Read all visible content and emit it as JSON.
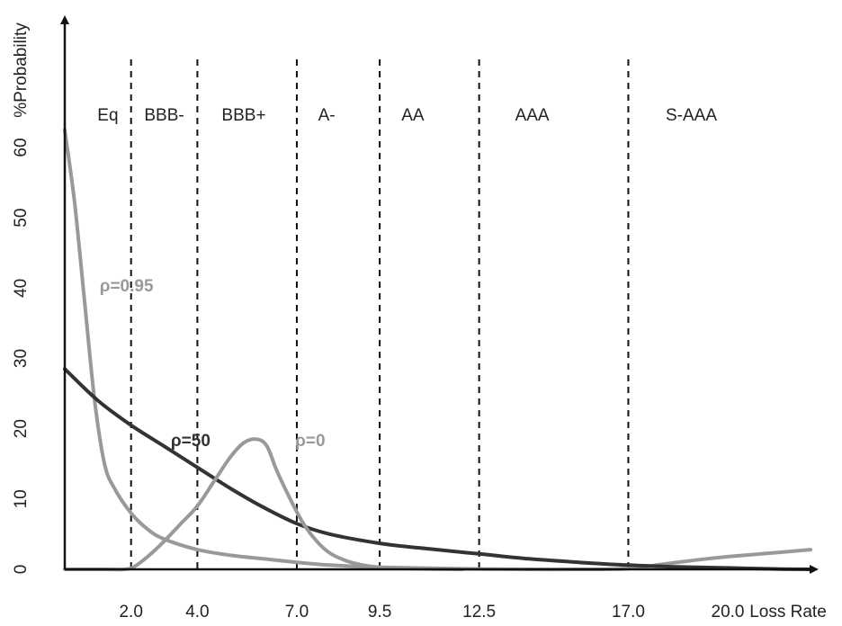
{
  "chart_data": {
    "type": "line",
    "title": "",
    "xlabel": "Loss Rate",
    "ylabel": "%Probability",
    "xlim": [
      0,
      23.5
    ],
    "ylim": [
      0,
      60
    ],
    "grid": false,
    "x_ticks": [
      "2.0",
      "4.0",
      "7.0",
      "9.5",
      "12.5",
      "17.0",
      "20.0"
    ],
    "x_tick_values": [
      2.0,
      4.0,
      7.0,
      9.5,
      12.5,
      17.0,
      20.0
    ],
    "y_ticks": [
      "0",
      "10",
      "20",
      "30",
      "40",
      "50",
      "60"
    ],
    "y_tick_values": [
      0,
      10,
      20,
      30,
      40,
      50,
      60
    ],
    "tranche_boundaries": [
      2.0,
      4.0,
      7.0,
      9.5,
      12.5,
      17.0
    ],
    "tranches": [
      {
        "label": "Eq",
        "x": 1.3
      },
      {
        "label": "BBB-",
        "x": 3.0
      },
      {
        "label": "BBB+",
        "x": 5.4
      },
      {
        "label": "A-",
        "x": 7.9
      },
      {
        "label": "AA",
        "x": 10.5
      },
      {
        "label": "AAA",
        "x": 14.1
      },
      {
        "label": "S-AAA",
        "x": 18.9
      }
    ],
    "series": [
      {
        "name": "ρ=0.95",
        "color": "#999999",
        "label_at": [
          1.05,
          39.5
        ],
        "x": [
          0,
          0.3,
          0.6,
          0.9,
          1.2,
          1.5,
          2.0,
          2.5,
          3.0,
          4.0,
          5.0,
          6.0,
          7.0,
          8.0,
          9.5,
          11.0,
          12.5,
          14.0,
          15.5,
          17.0,
          18.0,
          19.0,
          20.0,
          21.0,
          22.0,
          22.5
        ],
        "values": [
          62.5,
          52,
          38,
          24,
          15,
          11.5,
          8,
          5.7,
          4.3,
          2.8,
          2.0,
          1.5,
          1.0,
          0.6,
          0.3,
          0.15,
          0.05,
          0,
          0,
          0.1,
          0.7,
          1.3,
          1.8,
          2.2,
          2.6,
          2.8
        ]
      },
      {
        "name": "ρ=50",
        "color": "#333333",
        "label_at": [
          3.2,
          17.5
        ],
        "x": [
          0,
          1.0,
          2.0,
          3.0,
          4.0,
          5.0,
          6.0,
          7.0,
          8.0,
          9.5,
          11.0,
          12.5,
          14.0,
          15.5,
          17.0,
          18.5,
          20.0,
          21.5,
          22.5
        ],
        "values": [
          28.5,
          24,
          20.5,
          17.5,
          14.5,
          11.5,
          8.8,
          6.5,
          5.0,
          3.7,
          2.9,
          2.2,
          1.5,
          1.0,
          0.6,
          0.35,
          0.2,
          0.05,
          0
        ]
      },
      {
        "name": "ρ=0",
        "color": "#999999",
        "label_at": [
          6.95,
          17.5
        ],
        "x": [
          0,
          1.2,
          1.8,
          2.1,
          2.5,
          3.0,
          3.5,
          4.0,
          4.5,
          5.0,
          5.4,
          5.8,
          6.1,
          6.4,
          6.8,
          7.2,
          7.6,
          8.0,
          8.5,
          9.0,
          9.5,
          10.5,
          12.0
        ],
        "values": [
          0,
          0,
          0,
          0.4,
          1.8,
          4.0,
          6.5,
          9.0,
          12.5,
          16.0,
          18.0,
          18.5,
          17.5,
          14.0,
          10.0,
          6.5,
          4.0,
          2.3,
          1.2,
          0.6,
          0.3,
          0.1,
          0
        ]
      }
    ]
  }
}
